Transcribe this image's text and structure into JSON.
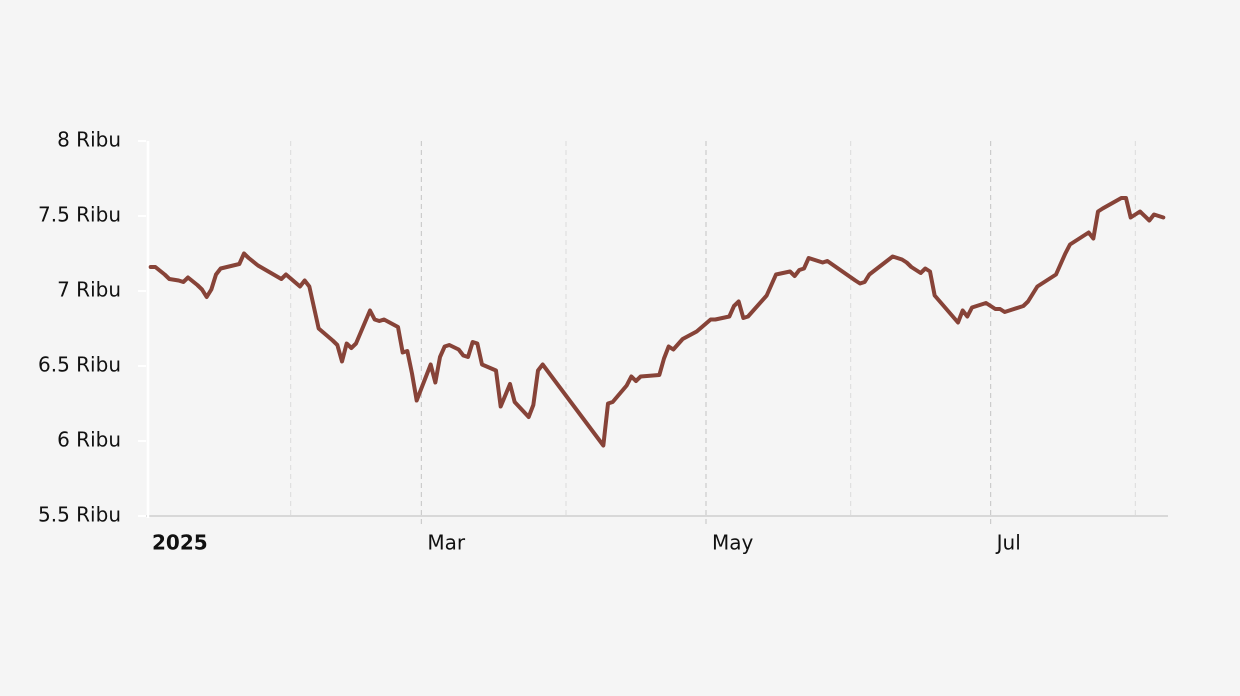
{
  "chart_data": {
    "type": "line",
    "x": [
      1,
      2,
      4,
      5,
      7,
      8,
      9,
      11,
      12,
      13,
      14,
      15,
      16,
      20,
      21,
      22,
      24,
      29,
      30,
      33,
      34,
      35,
      37,
      40,
      41,
      42,
      43,
      44,
      45,
      48,
      49,
      50,
      51,
      54,
      55,
      56,
      57,
      58,
      61,
      62,
      63,
      64,
      65,
      67,
      68,
      69,
      70,
      71,
      72,
      75,
      76,
      78,
      79,
      82,
      83,
      84,
      85,
      98,
      99,
      100,
      103,
      104,
      105,
      106,
      110,
      111,
      112,
      113,
      115,
      118,
      121,
      122,
      125,
      126,
      127,
      128,
      129,
      133,
      135,
      138,
      139,
      140,
      141,
      142,
      145,
      146,
      152,
      153,
      154,
      155,
      160,
      162,
      163,
      164,
      166,
      167,
      168,
      169,
      174,
      175,
      176,
      177,
      180,
      182,
      183,
      184,
      188,
      189,
      191,
      193,
      195,
      197,
      198,
      202,
      203,
      204,
      205,
      209,
      210,
      211,
      213,
      215,
      216,
      217,
      218
    ],
    "series": [
      {
        "color": "#874338",
        "values": [
          7160,
          7160,
          7110,
          7080,
          7070,
          7060,
          7090,
          7040,
          7010,
          6960,
          7010,
          7110,
          7150,
          7180,
          7250,
          7220,
          7170,
          7080,
          7110,
          7030,
          7070,
          7030,
          6750,
          6670,
          6640,
          6530,
          6650,
          6620,
          6650,
          6870,
          6810,
          6800,
          6810,
          6760,
          6590,
          6600,
          6450,
          6270,
          6510,
          6390,
          6560,
          6630,
          6640,
          6610,
          6570,
          6560,
          6660,
          6650,
          6510,
          6470,
          6230,
          6380,
          6260,
          6160,
          6240,
          6470,
          6510,
          5970,
          6250,
          6260,
          6370,
          6430,
          6400,
          6430,
          6440,
          6550,
          6630,
          6610,
          6680,
          6730,
          6810,
          6810,
          6830,
          6900,
          6930,
          6820,
          6830,
          6970,
          7110,
          7130,
          7100,
          7140,
          7150,
          7220,
          7190,
          7200,
          7070,
          7050,
          7060,
          7110,
          7230,
          7210,
          7190,
          7160,
          7120,
          7150,
          7130,
          6970,
          6790,
          6870,
          6830,
          6890,
          6920,
          6880,
          6880,
          6860,
          6900,
          6930,
          7030,
          7070,
          7110,
          7250,
          7310,
          7390,
          7350,
          7530,
          7550,
          7620,
          7620,
          7490,
          7530,
          7470,
          7510,
          7500,
          7490
        ]
      }
    ],
    "xlim": [
      0,
      219
    ],
    "xticks": [
      {
        "value": 0,
        "label": "2025"
      },
      {
        "value": 59,
        "label": "Mar"
      },
      {
        "value": 120,
        "label": "May"
      },
      {
        "value": 181,
        "label": "Jul"
      }
    ],
    "xminorticks": [
      31,
      90,
      151,
      212
    ],
    "ylim": [
      5500,
      8000
    ],
    "yticks": [
      {
        "value": 5500,
        "label": "5.5 Ribu"
      },
      {
        "value": 6000,
        "label": "6 Ribu"
      },
      {
        "value": 6500,
        "label": "6.5 Ribu"
      },
      {
        "value": 7000,
        "label": "7 Ribu"
      },
      {
        "value": 7500,
        "label": "7.5 Ribu"
      },
      {
        "value": 8000,
        "label": "8 Ribu"
      }
    ],
    "grid": true
  }
}
